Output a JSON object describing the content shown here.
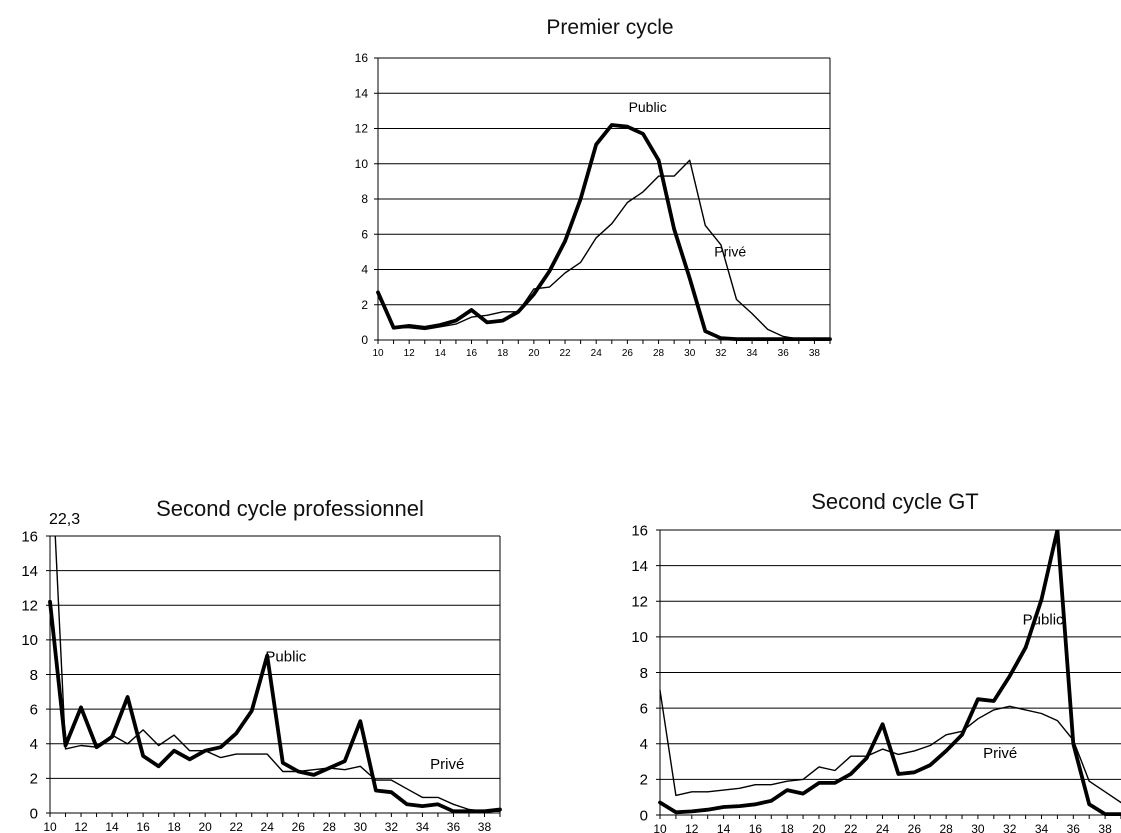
{
  "chart_data": [
    {
      "id": "premier",
      "type": "line",
      "title": "Premier cycle",
      "xlabel": "",
      "ylabel": "",
      "ylim": [
        0,
        16
      ],
      "yticks": [
        "0",
        "2",
        "4",
        "6",
        "8",
        "10",
        "12",
        "14",
        "16"
      ],
      "xlim": [
        10,
        39
      ],
      "xticks": [
        "10",
        "12",
        "14",
        "16",
        "18",
        "20",
        "22",
        "24",
        "26",
        "28",
        "30",
        "32",
        "34",
        "36",
        "38"
      ],
      "grid": "horizontal",
      "series": [
        {
          "name": "Public",
          "weight": "bold",
          "x": [
            10,
            11,
            12,
            13,
            14,
            15,
            16,
            17,
            18,
            19,
            20,
            21,
            22,
            23,
            24,
            25,
            26,
            27,
            28,
            29,
            30,
            31,
            32,
            33,
            34,
            35,
            36,
            37,
            38,
            39
          ],
          "y": [
            2.7,
            0.7,
            0.8,
            0.7,
            0.85,
            1.1,
            1.7,
            1.0,
            1.1,
            1.6,
            2.6,
            3.9,
            5.6,
            8.0,
            11.1,
            12.2,
            12.1,
            11.7,
            10.2,
            6.3,
            3.5,
            0.5,
            0.1,
            0.05,
            0.05,
            0.05,
            0.05,
            0.05,
            0.05,
            0.05
          ]
        },
        {
          "name": "Privé",
          "weight": "thin",
          "x": [
            10,
            11,
            12,
            13,
            14,
            15,
            16,
            17,
            18,
            19,
            20,
            21,
            22,
            23,
            24,
            25,
            26,
            27,
            28,
            29,
            30,
            31,
            32,
            33,
            34,
            35,
            36,
            37,
            38,
            39
          ],
          "y": [
            2.5,
            0.7,
            0.7,
            0.6,
            0.75,
            0.9,
            1.3,
            1.4,
            1.6,
            1.6,
            2.9,
            3.0,
            3.8,
            4.4,
            5.8,
            6.6,
            7.8,
            8.4,
            9.3,
            9.3,
            10.2,
            6.5,
            5.4,
            2.3,
            1.5,
            0.6,
            0.2,
            0.05,
            0.05,
            0.05
          ]
        }
      ],
      "annotations": [
        {
          "text": "Public",
          "x": 27.3,
          "y": 12.95
        },
        {
          "text": "Privé",
          "x": 32.6,
          "y": 4.75
        }
      ]
    },
    {
      "id": "pro",
      "type": "line",
      "title": "Second cycle professionnel",
      "xlabel": "",
      "ylabel": "",
      "ylim": [
        0,
        16
      ],
      "yticks": [
        "0",
        "2",
        "4",
        "6",
        "8",
        "10",
        "12",
        "14",
        "16"
      ],
      "xlim": [
        10,
        39
      ],
      "xticks": [
        "10",
        "12",
        "14",
        "16",
        "18",
        "20",
        "22",
        "24",
        "26",
        "28",
        "30",
        "32",
        "34",
        "36",
        "38"
      ],
      "grid": "horizontal",
      "series": [
        {
          "name": "Public",
          "weight": "bold",
          "x": [
            10,
            11,
            12,
            13,
            14,
            15,
            16,
            17,
            18,
            19,
            20,
            21,
            22,
            23,
            24,
            25,
            26,
            27,
            28,
            29,
            30,
            31,
            32,
            33,
            34,
            35,
            36,
            37,
            38,
            39
          ],
          "y": [
            12.2,
            3.9,
            6.1,
            3.8,
            4.4,
            6.7,
            3.3,
            2.7,
            3.6,
            3.1,
            3.6,
            3.8,
            4.6,
            5.9,
            9.1,
            2.9,
            2.4,
            2.2,
            2.6,
            3.0,
            5.3,
            1.3,
            1.2,
            0.5,
            0.4,
            0.5,
            0.1,
            0.1,
            0.1,
            0.2
          ]
        },
        {
          "name": "Privé",
          "weight": "thin",
          "x": [
            10,
            11,
            12,
            13,
            14,
            15,
            16,
            17,
            18,
            19,
            20,
            21,
            22,
            23,
            24,
            25,
            26,
            27,
            28,
            29,
            30,
            31,
            32,
            33,
            34,
            35,
            36,
            37,
            38,
            39
          ],
          "y": [
            22.3,
            3.7,
            3.9,
            3.8,
            4.5,
            4.0,
            4.8,
            3.9,
            4.5,
            3.6,
            3.6,
            3.2,
            3.4,
            3.4,
            3.4,
            2.4,
            2.4,
            2.5,
            2.6,
            2.5,
            2.7,
            1.9,
            1.9,
            1.4,
            0.9,
            0.9,
            0.5,
            0.2,
            0.1,
            0.1
          ]
        }
      ],
      "annotations": [
        {
          "text": "Public",
          "x": 25.2,
          "y": 8.75
        },
        {
          "text": "Privé",
          "x": 35.6,
          "y": 2.55
        }
      ],
      "clip_labels": [
        {
          "text": "22,3"
        }
      ]
    },
    {
      "id": "gt",
      "type": "line",
      "title": "Second cycle GT",
      "xlabel": "",
      "ylabel": "",
      "ylim": [
        0,
        16
      ],
      "yticks": [
        "0",
        "2",
        "4",
        "6",
        "8",
        "10",
        "12",
        "14",
        "16"
      ],
      "xlim": [
        10,
        39
      ],
      "xticks": [
        "10",
        "12",
        "14",
        "16",
        "18",
        "20",
        "22",
        "24",
        "26",
        "28",
        "30",
        "32",
        "34",
        "36",
        "38"
      ],
      "grid": "horizontal",
      "series": [
        {
          "name": "Public",
          "weight": "bold",
          "x": [
            10,
            11,
            12,
            13,
            14,
            15,
            16,
            17,
            18,
            19,
            20,
            21,
            22,
            23,
            24,
            25,
            26,
            27,
            28,
            29,
            30,
            31,
            32,
            33,
            34,
            35,
            36,
            37,
            38,
            39
          ],
          "y": [
            0.7,
            0.15,
            0.2,
            0.3,
            0.45,
            0.5,
            0.6,
            0.8,
            1.4,
            1.2,
            1.8,
            1.8,
            2.3,
            3.2,
            5.1,
            2.3,
            2.4,
            2.8,
            3.6,
            4.5,
            6.5,
            6.4,
            7.8,
            9.4,
            12.1,
            16.0,
            4.0,
            0.6,
            0.05,
            0.05
          ]
        },
        {
          "name": "Privé",
          "weight": "thin",
          "x": [
            10,
            11,
            12,
            13,
            14,
            15,
            16,
            17,
            18,
            19,
            20,
            21,
            22,
            23,
            24,
            25,
            26,
            27,
            28,
            29,
            30,
            31,
            32,
            33,
            34,
            35,
            36,
            37,
            38,
            39
          ],
          "y": [
            7.0,
            1.1,
            1.3,
            1.3,
            1.4,
            1.5,
            1.7,
            1.7,
            1.9,
            2.0,
            2.7,
            2.5,
            3.3,
            3.3,
            3.7,
            3.4,
            3.6,
            3.9,
            4.5,
            4.7,
            5.4,
            5.9,
            6.1,
            5.9,
            5.7,
            5.3,
            4.2,
            1.9,
            1.3,
            0.7
          ]
        }
      ],
      "annotations": [
        {
          "text": "Public",
          "x": 34.1,
          "y": 10.7
        },
        {
          "text": "Privé",
          "x": 31.4,
          "y": 3.2
        }
      ]
    }
  ]
}
